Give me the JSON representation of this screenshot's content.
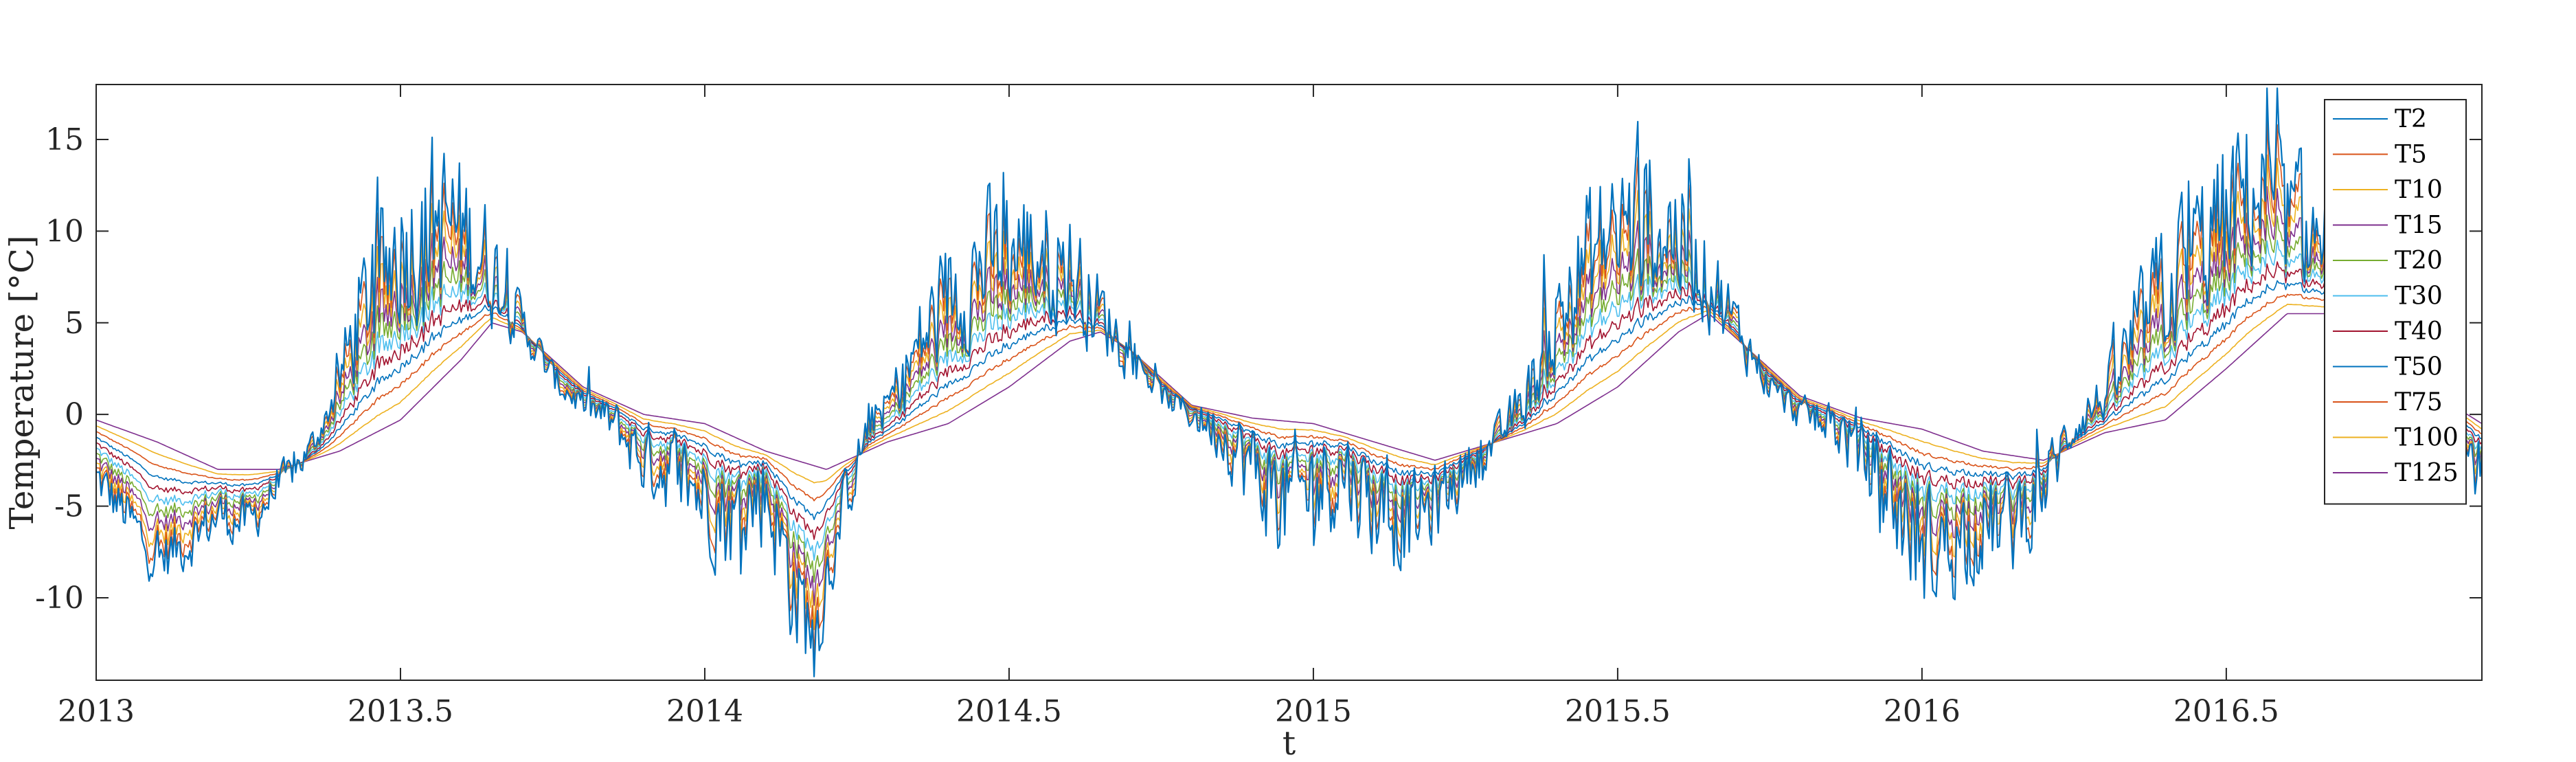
{
  "chart_data": {
    "type": "line",
    "title": "",
    "xlabel": "t",
    "ylabel": "Temperature [°C]",
    "xlim": [
      2013,
      2016.92
    ],
    "ylim": [
      -14.5,
      18
    ],
    "x_ticks": [
      2013,
      2013.5,
      2014,
      2014.5,
      2015,
      2015.5,
      2016,
      2016.5
    ],
    "x_tick_labels": [
      "2013",
      "2013.5",
      "2014",
      "2014.5",
      "2015",
      "2015.5",
      "2016",
      "2016.5"
    ],
    "y_ticks": [
      -10,
      -5,
      0,
      5,
      10,
      15
    ],
    "y_tick_labels": [
      "-10",
      "-5",
      "0",
      "5",
      "10",
      "15"
    ],
    "grid": false,
    "legend_position": "top-right",
    "depths_cm": [
      2,
      5,
      10,
      15,
      20,
      30,
      40,
      50,
      75,
      100,
      125
    ],
    "series": [
      {
        "name": "T2",
        "color": "#0072BD"
      },
      {
        "name": "T5",
        "color": "#D95319"
      },
      {
        "name": "T10",
        "color": "#EDB120"
      },
      {
        "name": "T15",
        "color": "#7E2F8E"
      },
      {
        "name": "T20",
        "color": "#77AC30"
      },
      {
        "name": "T30",
        "color": "#4DBEEE"
      },
      {
        "name": "T40",
        "color": "#A2142F"
      },
      {
        "name": "T50",
        "color": "#0072BD"
      },
      {
        "name": "T75",
        "color": "#D95319"
      },
      {
        "name": "T100",
        "color": "#EDB120"
      },
      {
        "name": "T125",
        "color": "#7E2F8E"
      }
    ],
    "surface_profile": {
      "x": [
        2013.0,
        2013.05,
        2013.1,
        2013.15,
        2013.2,
        2013.25,
        2013.3,
        2013.35,
        2013.38,
        2013.42,
        2013.46,
        2013.5,
        2013.55,
        2013.58,
        2013.62,
        2013.66,
        2013.7,
        2013.75,
        2013.8,
        2013.85,
        2013.9,
        2013.95,
        2014.0,
        2014.05,
        2014.1,
        2014.15,
        2014.18,
        2014.22,
        2014.27,
        2014.3,
        2014.35,
        2014.4,
        2014.45,
        2014.5,
        2014.55,
        2014.6,
        2014.65,
        2014.7,
        2014.75,
        2014.8,
        2014.85,
        2014.9,
        2014.95,
        2015.0,
        2015.05,
        2015.1,
        2015.15,
        2015.2,
        2015.25,
        2015.3,
        2015.35,
        2015.4,
        2015.45,
        2015.5,
        2015.55,
        2015.6,
        2015.65,
        2015.7,
        2015.75,
        2015.8,
        2015.85,
        2015.9,
        2015.95,
        2016.0,
        2016.05,
        2016.1,
        2016.15,
        2016.2,
        2016.25,
        2016.3,
        2016.35,
        2016.4,
        2016.45,
        2016.5,
        2016.54,
        2016.6,
        2016.65,
        2016.7,
        2016.75,
        2016.8,
        2016.85,
        2016.92
      ],
      "mean": [
        -3.5,
        -5.5,
        -8.0,
        -7.0,
        -5.5,
        -6.0,
        -4.0,
        -2.0,
        0.0,
        4.0,
        7.5,
        9.5,
        10.5,
        10.5,
        9.5,
        7.5,
        5.0,
        2.0,
        0.5,
        -0.5,
        -2.5,
        -3.0,
        -4.5,
        -6.0,
        -4.0,
        -10.0,
        -12.0,
        -6.0,
        -0.5,
        0.5,
        3.5,
        6.5,
        8.0,
        9.0,
        9.0,
        8.0,
        5.5,
        3.5,
        1.0,
        0.0,
        -1.0,
        -3.0,
        -5.0,
        -4.0,
        -3.0,
        -5.0,
        -6.0,
        -5.0,
        -3.0,
        -1.5,
        1.0,
        5.0,
        8.5,
        10.0,
        10.5,
        10.0,
        7.5,
        4.5,
        1.5,
        0.0,
        -0.5,
        -2.0,
        -4.5,
        -7.5,
        -7.0,
        -6.0,
        -6.0,
        -4.0,
        -0.5,
        1.0,
        4.0,
        7.0,
        9.0,
        10.5,
        12.5,
        10.5,
        9.5,
        8.0,
        6.0,
        3.5,
        0.5,
        -3.5
      ],
      "noise": [
        1.2,
        1.3,
        1.4,
        1.3,
        1.3,
        1.2,
        1.0,
        0.8,
        0.7,
        2.5,
        3.5,
        4.0,
        4.5,
        4.0,
        3.5,
        2.5,
        1.2,
        0.8,
        0.8,
        1.2,
        1.8,
        2.2,
        2.5,
        2.8,
        2.8,
        3.0,
        2.5,
        1.8,
        1.0,
        1.0,
        2.5,
        3.0,
        3.5,
        3.5,
        3.5,
        3.0,
        2.0,
        1.0,
        0.6,
        0.8,
        1.5,
        2.5,
        3.0,
        3.0,
        2.5,
        2.5,
        2.5,
        2.0,
        1.5,
        1.0,
        1.5,
        3.0,
        3.5,
        4.0,
        4.0,
        3.5,
        2.5,
        1.5,
        0.8,
        0.8,
        1.2,
        2.0,
        3.0,
        3.0,
        2.8,
        2.5,
        2.5,
        2.0,
        1.2,
        1.2,
        2.5,
        3.5,
        3.5,
        4.0,
        4.0,
        3.5,
        3.0,
        2.5,
        2.0,
        1.5,
        1.5,
        1.5
      ]
    },
    "deep_profile_T125": {
      "x": [
        2013.0,
        2013.1,
        2013.2,
        2013.3,
        2013.4,
        2013.5,
        2013.6,
        2013.65,
        2013.7,
        2013.8,
        2013.9,
        2014.0,
        2014.1,
        2014.2,
        2014.3,
        2014.4,
        2014.5,
        2014.6,
        2014.65,
        2014.7,
        2014.8,
        2014.9,
        2015.0,
        2015.1,
        2015.2,
        2015.3,
        2015.4,
        2015.5,
        2015.6,
        2015.65,
        2015.7,
        2015.8,
        2015.9,
        2016.0,
        2016.1,
        2016.2,
        2016.3,
        2016.4,
        2016.5,
        2016.6,
        2016.7,
        2016.8,
        2016.92
      ],
      "y": [
        -0.3,
        -1.5,
        -3.0,
        -3.0,
        -2.0,
        -0.3,
        3.0,
        5.0,
        4.5,
        1.5,
        0.0,
        -0.5,
        -2.0,
        -3.0,
        -1.5,
        -0.5,
        1.5,
        4.0,
        4.5,
        3.5,
        0.5,
        -0.2,
        -0.5,
        -1.5,
        -2.5,
        -1.5,
        -0.5,
        1.5,
        4.5,
        5.5,
        4.0,
        1.0,
        -0.2,
        -0.8,
        -2.0,
        -2.5,
        -1.0,
        -0.3,
        2.5,
        5.5,
        5.5,
        2.0,
        -0.5
      ]
    }
  }
}
